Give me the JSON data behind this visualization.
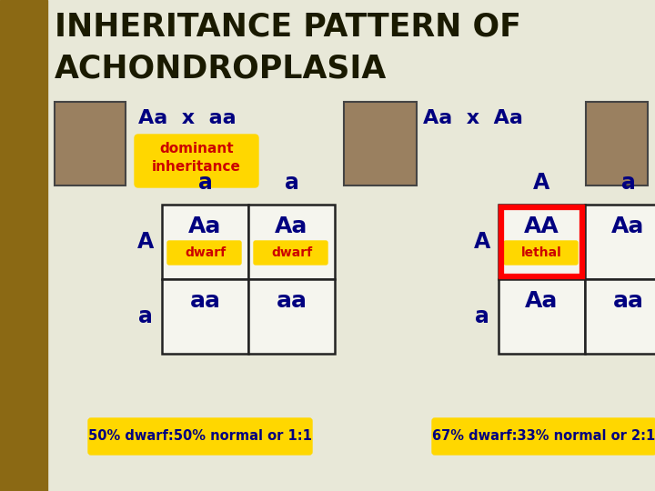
{
  "title_line1": "INHERITANCE PATTERN OF",
  "title_line2": "ACHONDROPLASIA",
  "title_color": "#1a1a00",
  "bg_color": "#e8e8d8",
  "left_strip_color": "#8B6914",
  "cross1_label": "Aa  x  aa",
  "cross2_label": "Aa  x  Aa",
  "dominant_box_text": "dominant\ninheritance",
  "dominant_box_color": "#FFD700",
  "dominant_text_color": "#CC0000",
  "grid1": {
    "col_headers": [
      "a",
      "a"
    ],
    "row_headers": [
      "A",
      "a"
    ],
    "cells": [
      [
        "Aa",
        "Aa"
      ],
      [
        "aa",
        "aa"
      ]
    ],
    "cell_labels": [
      [
        "dwarf",
        "dwarf"
      ],
      [
        "",
        ""
      ]
    ]
  },
  "grid2": {
    "col_headers": [
      "A",
      "a"
    ],
    "row_headers": [
      "A",
      "a"
    ],
    "cells": [
      [
        "AA",
        "Aa"
      ],
      [
        "Aa",
        "aa"
      ]
    ],
    "cell_labels": [
      [
        "lethal",
        ""
      ],
      [
        "",
        ""
      ]
    ]
  },
  "footer1_text": "50% dwarf:50% normal or 1:1",
  "footer2_text": "67% dwarf:33% normal or 2:1",
  "footer_bg": "#FFD700",
  "footer_text_color": "#000080",
  "navy": "#000080",
  "red": "#CC0000"
}
